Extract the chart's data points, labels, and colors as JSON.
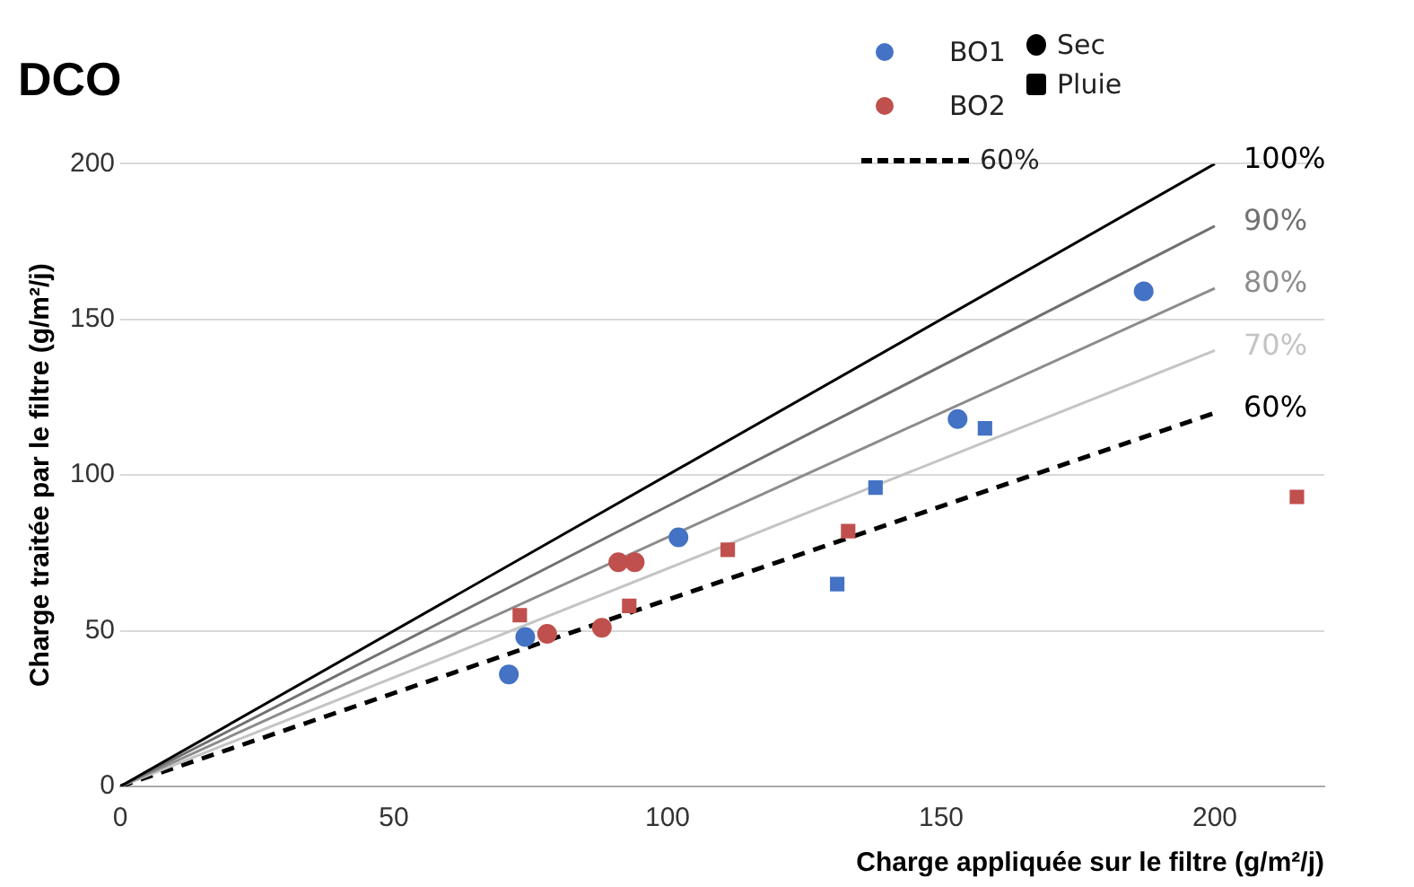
{
  "chart_data": {
    "type": "scatter",
    "title": "DCO",
    "xlabel": "Charge appliquée sur le filtre (g/m²/j)",
    "ylabel": "Charge traitée par le filtre (g/m²/j)",
    "xlim": [
      0,
      220
    ],
    "xticks": [
      0,
      50,
      100,
      150,
      200
    ],
    "ylim": [
      0,
      200
    ],
    "yticks": [
      0,
      50,
      100,
      150,
      200
    ],
    "grid": "y",
    "legend": "top right",
    "annotations": [
      "Sec",
      "Pluie"
    ],
    "series": [
      {
        "name": "BO1",
        "color": "#4472c4",
        "marker": "circle",
        "x": [
          71,
          74,
          102,
          153,
          187
        ],
        "values": [
          36,
          48,
          80,
          118,
          159
        ]
      },
      {
        "color": "#4472c4",
        "marker": "square",
        "x": [
          131,
          138,
          158
        ],
        "values": [
          65,
          96,
          115
        ]
      },
      {
        "name": "BO2",
        "color": "#c0504d",
        "marker": "circle",
        "x": [
          78,
          88,
          91,
          94
        ],
        "values": [
          49,
          51,
          72,
          72
        ]
      },
      {
        "color": "#c0504d",
        "marker": "square",
        "x": [
          73,
          93,
          111,
          133,
          215
        ],
        "values": [
          55,
          58,
          76,
          82,
          93
        ]
      },
      {
        "name": "100%",
        "type": "line",
        "color": "#000000",
        "marker": "none",
        "line_style": "solid",
        "x": [
          0,
          200
        ],
        "values": [
          0,
          200
        ]
      },
      {
        "name": "90%",
        "type": "line",
        "color": "#707070",
        "marker": "none",
        "line_style": "solid",
        "x": [
          0,
          200
        ],
        "values": [
          0,
          180
        ]
      },
      {
        "name": "80%",
        "type": "line",
        "color": "#8c8c8c",
        "marker": "none",
        "line_style": "solid",
        "x": [
          0,
          200
        ],
        "values": [
          0,
          160
        ]
      },
      {
        "name": "70%",
        "type": "line",
        "color": "#c4c4c4",
        "marker": "none",
        "line_style": "solid",
        "x": [
          0,
          200
        ],
        "values": [
          0,
          140
        ]
      },
      {
        "name": "60%",
        "type": "line",
        "color": "#000000",
        "marker": "none",
        "line_style": "dashed",
        "x": [
          0,
          200
        ],
        "values": [
          0,
          120
        ]
      }
    ]
  }
}
